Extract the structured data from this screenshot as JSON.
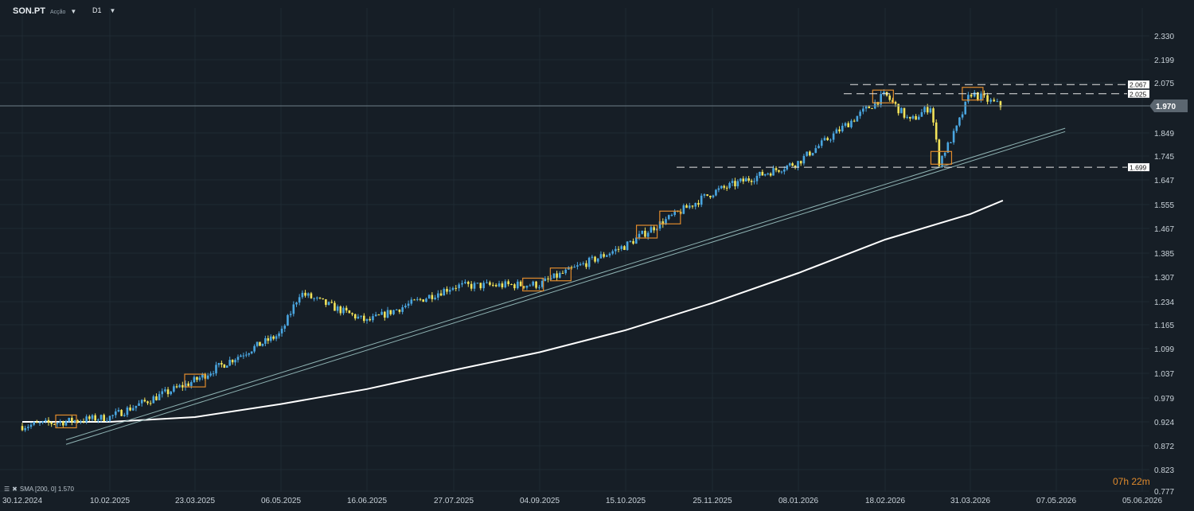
{
  "header": {
    "symbol": "SON.PT",
    "security_type": "Acção",
    "timeframe": "D1"
  },
  "indicator": {
    "label": "SMA [200, 0] 1.570"
  },
  "countdown": {
    "hours": "07h",
    "minutes": "22m"
  },
  "colors": {
    "background": "#161e26",
    "bull": "#4aa6e0",
    "bear": "#f2e35a",
    "sma": "#ffffff",
    "trendline": "#8fb3b3",
    "highlight": "#e08a2c"
  },
  "chart_data": {
    "type": "candlestick",
    "ylim": [
      0.777,
      2.33
    ],
    "y_ticks": [
      "2.330",
      "2.199",
      "2.075",
      "1.970",
      "1.849",
      "1.745",
      "1.647",
      "1.555",
      "1.467",
      "1.385",
      "1.307",
      "1.234",
      "1.165",
      "1.099",
      "1.037",
      "0.979",
      "0.924",
      "0.872",
      "0.823",
      "0.777"
    ],
    "x_ticks": [
      "30.12.2024",
      "10.02.2025",
      "23.03.2025",
      "06.05.2025",
      "16.06.2025",
      "27.07.2025",
      "04.09.2025",
      "15.10.2025",
      "25.11.2025",
      "08.01.2026",
      "18.02.2026",
      "31.03.2026",
      "07.05.2026",
      "05.06.2026"
    ],
    "current_price": "1.970",
    "levels": [
      {
        "label": "2.067",
        "value": 2.067
      },
      {
        "label": "2.025",
        "value": 2.025
      },
      {
        "label": "1.699",
        "value": 1.699
      }
    ],
    "anchors": [
      {
        "date": "30.12.2024",
        "price": 0.915
      },
      {
        "date": "10.02.2025",
        "price": 0.935
      },
      {
        "date": "23.03.2025",
        "price": 1.02
      },
      {
        "date": "06.05.2025",
        "price": 1.14
      },
      {
        "date": "15.05.2025",
        "price": 1.26
      },
      {
        "date": "16.06.2025",
        "price": 1.175
      },
      {
        "date": "27.07.2025",
        "price": 1.28
      },
      {
        "date": "04.09.2025",
        "price": 1.285
      },
      {
        "date": "15.10.2025",
        "price": 1.41
      },
      {
        "date": "25.11.2025",
        "price": 1.6
      },
      {
        "date": "08.01.2026",
        "price": 1.72
      },
      {
        "date": "18.02.2026",
        "price": 2.02
      },
      {
        "date": "02.03.2026",
        "price": 1.9
      },
      {
        "date": "12.03.2026",
        "price": 1.97
      },
      {
        "date": "16.03.2026",
        "price": 1.72
      },
      {
        "date": "24.03.2026",
        "price": 1.86
      },
      {
        "date": "31.03.2026",
        "price": 2.03
      },
      {
        "date": "14.04.2026",
        "price": 1.965
      }
    ],
    "sma_200": [
      {
        "date": "30.12.2024",
        "value": 0.924
      },
      {
        "date": "10.02.2025",
        "value": 0.924
      },
      {
        "date": "23.03.2025",
        "value": 0.935
      },
      {
        "date": "06.05.2025",
        "value": 0.965
      },
      {
        "date": "16.06.2025",
        "value": 1.0
      },
      {
        "date": "27.07.2025",
        "value": 1.045
      },
      {
        "date": "04.09.2025",
        "value": 1.09
      },
      {
        "date": "15.10.2025",
        "value": 1.15
      },
      {
        "date": "25.11.2025",
        "value": 1.23
      },
      {
        "date": "08.01.2026",
        "value": 1.32
      },
      {
        "date": "18.02.2026",
        "value": 1.43
      },
      {
        "date": "31.03.2026",
        "value": 1.52
      },
      {
        "date": "14.04.2026",
        "value": 1.57
      }
    ],
    "trendlines": [
      {
        "from": {
          "date": "20.01.2025",
          "price": 0.885
        },
        "to": {
          "date": "10.05.2026",
          "price": 1.87
        }
      },
      {
        "from": {
          "date": "20.01.2025",
          "price": 0.875
        },
        "to": {
          "date": "10.05.2026",
          "price": 1.855
        }
      }
    ],
    "highlight_boxes": [
      {
        "date": "20.01.2025"
      },
      {
        "date": "23.03.2025"
      },
      {
        "date": "01.09.2025"
      },
      {
        "date": "14.09.2025"
      },
      {
        "date": "25.10.2025"
      },
      {
        "date": "05.11.2025"
      },
      {
        "date": "17.02.2026"
      },
      {
        "date": "17.03.2026"
      },
      {
        "date": "01.04.2026"
      }
    ]
  }
}
